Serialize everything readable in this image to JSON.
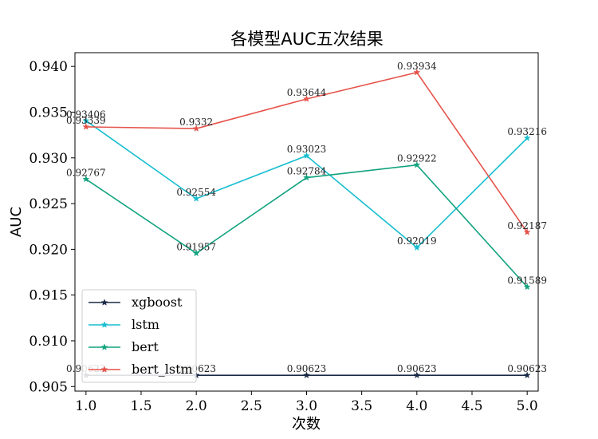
{
  "chart_data": {
    "type": "line",
    "title": "各模型AUC五次结果",
    "xlabel": "次数",
    "ylabel": "AUC",
    "x": [
      1.0,
      2.0,
      3.0,
      4.0,
      5.0
    ],
    "xlim": [
      0.9,
      5.1
    ],
    "ylim": [
      0.9045,
      0.9415
    ],
    "xticks": [
      1.0,
      1.5,
      2.0,
      2.5,
      3.0,
      3.5,
      4.0,
      4.5,
      5.0
    ],
    "xtick_labels": [
      "1.0",
      "1.5",
      "2.0",
      "2.5",
      "3.0",
      "3.5",
      "4.0",
      "4.5",
      "5.0"
    ],
    "yticks": [
      0.905,
      0.91,
      0.915,
      0.92,
      0.925,
      0.93,
      0.935,
      0.94
    ],
    "ytick_labels": [
      "0.905",
      "0.910",
      "0.915",
      "0.920",
      "0.925",
      "0.930",
      "0.935",
      "0.940"
    ],
    "grid": false,
    "legend_position": "bottom-left",
    "marker": "star",
    "series": [
      {
        "name": "xgboost",
        "color": "#1b2a47",
        "values": [
          0.90623,
          0.90623,
          0.90623,
          0.90623,
          0.90623
        ],
        "labels": [
          "0.90623",
          "0.90623",
          "0.90623",
          "0.90623",
          "0.90623"
        ]
      },
      {
        "name": "lstm",
        "color": "#17becf",
        "values": [
          0.93406,
          0.92554,
          0.93023,
          0.92019,
          0.93216
        ],
        "labels": [
          "0.93406",
          "0.92554",
          "0.93023",
          "0.92019",
          "0.93216"
        ]
      },
      {
        "name": "bert",
        "color": "#12a37f",
        "values": [
          0.92767,
          0.91957,
          0.92784,
          0.92922,
          0.91589
        ],
        "labels": [
          "0.92767",
          "0.91957",
          "0.92784",
          "0.92922",
          "0.91589"
        ]
      },
      {
        "name": "bert_lstm",
        "color": "#e5534b",
        "values": [
          0.93339,
          0.9332,
          0.93644,
          0.93934,
          0.92187
        ],
        "labels": [
          "0.93339",
          "0.9332",
          "0.93644",
          "0.93934",
          "0.92187"
        ]
      }
    ]
  }
}
